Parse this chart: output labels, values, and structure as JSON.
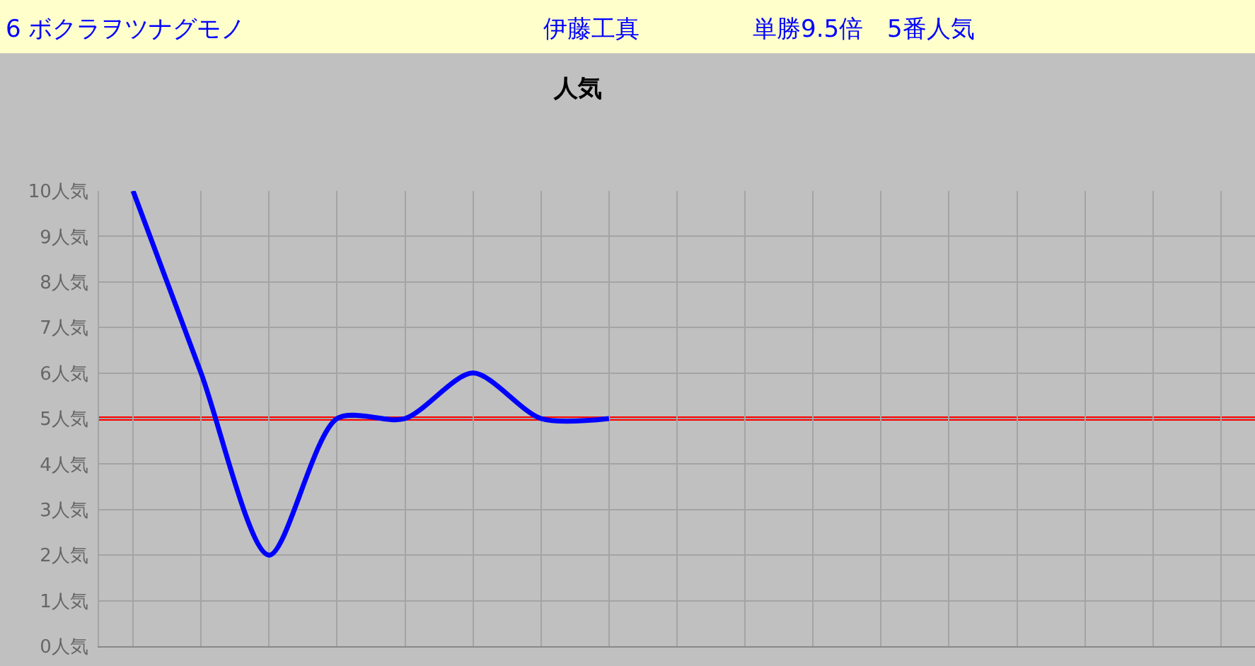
{
  "chart_data": {
    "type": "line",
    "title": "人気",
    "annotations": [
      "6 ボクラヲツナグモノ",
      "伊藤工真",
      "単勝9.5倍　5番人気"
    ],
    "categories": [
      null,
      null,
      null,
      null,
      null,
      null,
      null,
      null,
      null,
      null,
      null,
      null,
      null,
      null,
      null,
      null,
      null
    ],
    "series": [
      {
        "color": "#0000ff",
        "values": [
          10,
          6,
          2,
          5,
          5,
          6,
          5,
          5,
          null,
          null,
          null,
          null,
          null,
          null,
          null,
          null,
          null
        ]
      }
    ],
    "ref_lines": [
      {
        "axis": "y",
        "value": 5,
        "color": "#ff0000"
      }
    ],
    "ylim": [
      0,
      10
    ],
    "yticks": [
      {
        "value": 0,
        "label": "0人気"
      },
      {
        "value": 1,
        "label": "1人気"
      },
      {
        "value": 2,
        "label": "2人気"
      },
      {
        "value": 3,
        "label": "3人気"
      },
      {
        "value": 4,
        "label": "4人気"
      },
      {
        "value": 5,
        "label": "5人気"
      },
      {
        "value": 6,
        "label": "6人気"
      },
      {
        "value": 7,
        "label": "7人気"
      },
      {
        "value": 8,
        "label": "8人気"
      },
      {
        "value": 9,
        "label": "9人気"
      },
      {
        "value": 10,
        "label": "10人気"
      }
    ],
    "grid": true,
    "marker": "none",
    "line_style": "solid"
  }
}
